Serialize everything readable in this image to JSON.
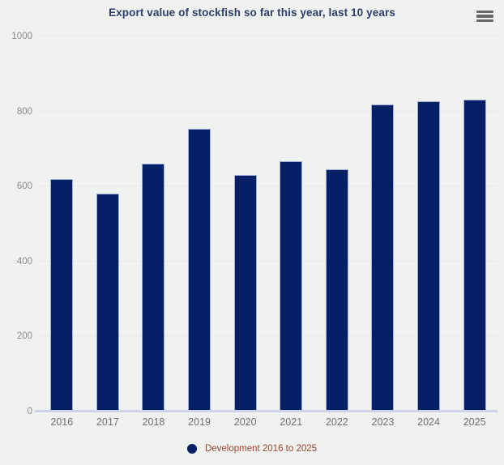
{
  "header": {
    "title": "Export value of stockfish so far this year, last 10 years",
    "menu_icon": "hamburger-menu-icon"
  },
  "chart_data": {
    "type": "bar",
    "title": "Export value of stockfish so far this year, last 10 years",
    "categories": [
      "2016",
      "2017",
      "2018",
      "2019",
      "2020",
      "2021",
      "2022",
      "2023",
      "2024",
      "2025"
    ],
    "values": [
      620,
      582,
      660,
      753,
      630,
      667,
      646,
      818,
      828,
      831
    ],
    "series_name": "Development 2016 to 2025",
    "xlabel": "",
    "ylabel": "",
    "ylim": [
      0,
      1000
    ],
    "yticks": [
      0,
      200,
      400,
      600,
      800,
      1000
    ],
    "grid": true,
    "legend_position": "bottom",
    "colors": {
      "background": "#f0f2f0",
      "bar_fill": "#041f66",
      "bar_border": "#a3aed4",
      "gridline": "#e7e9e6",
      "axis_line": "#ccd3ea",
      "title_text": "#2c3d6e",
      "y_tick_text": "#8b8b8b",
      "x_tick_text": "#6f6f6f",
      "legend_text": "#9b4430",
      "menu_icon": "#666666"
    }
  }
}
